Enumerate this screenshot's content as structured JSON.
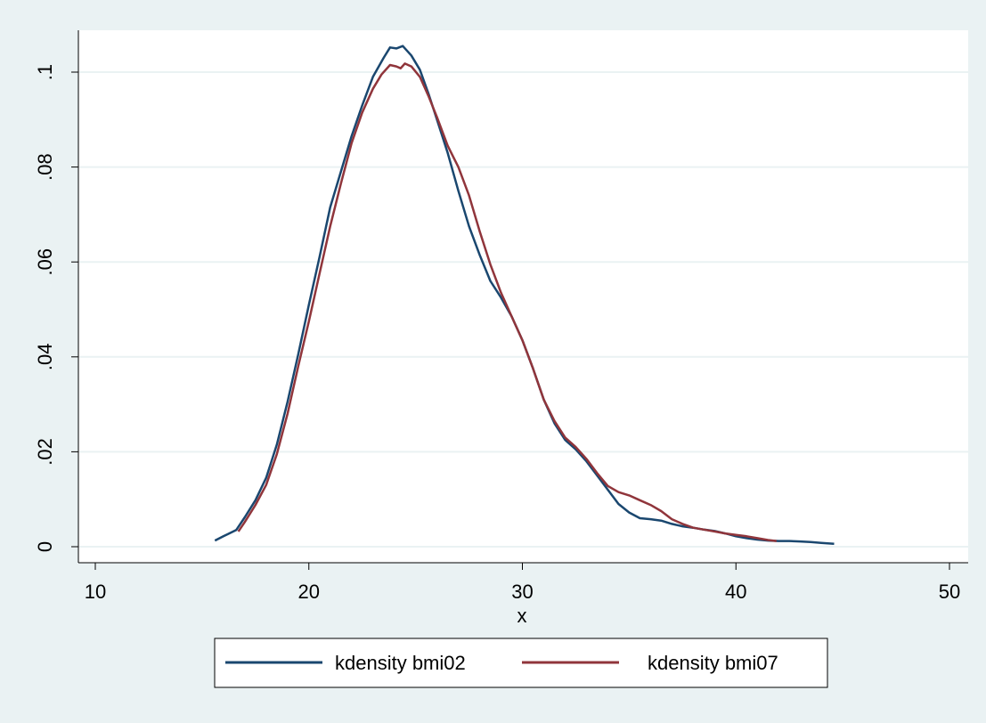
{
  "chart_data": {
    "type": "line",
    "title": "",
    "xlabel": "x",
    "ylabel": "",
    "xlim": [
      10,
      50
    ],
    "ylim": [
      0,
      0.1
    ],
    "x_ticks": [
      {
        "value": 10,
        "label": "10"
      },
      {
        "value": 20,
        "label": "20"
      },
      {
        "value": 30,
        "label": "30"
      },
      {
        "value": 40,
        "label": "40"
      },
      {
        "value": 50,
        "label": "50"
      }
    ],
    "y_ticks": [
      {
        "value": 0,
        "label": "0"
      },
      {
        "value": 0.02,
        "label": ".02"
      },
      {
        "value": 0.04,
        "label": ".04"
      },
      {
        "value": 0.06,
        "label": ".06"
      },
      {
        "value": 0.08,
        "label": ".08"
      },
      {
        "value": 0.1,
        "label": ".1"
      }
    ],
    "grid": "horizontal",
    "legend_position": "bottom",
    "series": [
      {
        "name": "kdensity bmi02",
        "color": "#1a476f",
        "points": [
          [
            15.6,
            0.0013
          ],
          [
            16.0,
            0.0022
          ],
          [
            16.6,
            0.0035
          ],
          [
            17.0,
            0.0062
          ],
          [
            17.5,
            0.0098
          ],
          [
            18.0,
            0.0145
          ],
          [
            18.5,
            0.0215
          ],
          [
            19.0,
            0.0305
          ],
          [
            19.5,
            0.0405
          ],
          [
            20.0,
            0.051
          ],
          [
            20.5,
            0.061
          ],
          [
            21.0,
            0.0715
          ],
          [
            21.5,
            0.079
          ],
          [
            22.0,
            0.0865
          ],
          [
            22.5,
            0.093
          ],
          [
            23.0,
            0.099
          ],
          [
            23.5,
            0.103
          ],
          [
            23.8,
            0.1052
          ],
          [
            24.1,
            0.105
          ],
          [
            24.4,
            0.1055
          ],
          [
            24.8,
            0.1035
          ],
          [
            25.2,
            0.1005
          ],
          [
            25.6,
            0.0955
          ],
          [
            26.0,
            0.09
          ],
          [
            26.5,
            0.083
          ],
          [
            27.0,
            0.075
          ],
          [
            27.5,
            0.0675
          ],
          [
            28.0,
            0.0615
          ],
          [
            28.5,
            0.056
          ],
          [
            29.0,
            0.0525
          ],
          [
            29.5,
            0.0485
          ],
          [
            30.0,
            0.0435
          ],
          [
            30.5,
            0.0375
          ],
          [
            31.0,
            0.031
          ],
          [
            31.5,
            0.026
          ],
          [
            32.0,
            0.0225
          ],
          [
            32.5,
            0.0205
          ],
          [
            33.0,
            0.018
          ],
          [
            33.5,
            0.015
          ],
          [
            34.0,
            0.012
          ],
          [
            34.5,
            0.009
          ],
          [
            35.0,
            0.0072
          ],
          [
            35.5,
            0.006
          ],
          [
            36.0,
            0.0058
          ],
          [
            36.5,
            0.0055
          ],
          [
            37.0,
            0.0048
          ],
          [
            37.5,
            0.0043
          ],
          [
            38.0,
            0.004
          ],
          [
            38.5,
            0.0036
          ],
          [
            39.0,
            0.0033
          ],
          [
            39.5,
            0.0028
          ],
          [
            40.0,
            0.0022
          ],
          [
            40.5,
            0.0018
          ],
          [
            41.0,
            0.0015
          ],
          [
            41.5,
            0.0013
          ],
          [
            42.0,
            0.0012
          ],
          [
            42.5,
            0.0012
          ],
          [
            43.0,
            0.0011
          ],
          [
            43.5,
            0.001
          ],
          [
            44.0,
            0.0008
          ],
          [
            44.6,
            0.0006
          ]
        ]
      },
      {
        "name": "kdensity bmi07",
        "color": "#90353b",
        "points": [
          [
            16.7,
            0.0032
          ],
          [
            17.0,
            0.0052
          ],
          [
            17.5,
            0.0088
          ],
          [
            18.0,
            0.013
          ],
          [
            18.5,
            0.0195
          ],
          [
            19.0,
            0.028
          ],
          [
            19.5,
            0.038
          ],
          [
            20.0,
            0.0475
          ],
          [
            20.5,
            0.0575
          ],
          [
            21.0,
            0.0675
          ],
          [
            21.5,
            0.0765
          ],
          [
            22.0,
            0.085
          ],
          [
            22.5,
            0.0915
          ],
          [
            23.0,
            0.0965
          ],
          [
            23.4,
            0.0995
          ],
          [
            23.8,
            0.1015
          ],
          [
            24.1,
            0.1012
          ],
          [
            24.3,
            0.1008
          ],
          [
            24.5,
            0.1018
          ],
          [
            24.8,
            0.1012
          ],
          [
            25.2,
            0.099
          ],
          [
            25.6,
            0.095
          ],
          [
            26.0,
            0.0905
          ],
          [
            26.5,
            0.0845
          ],
          [
            27.0,
            0.08
          ],
          [
            27.5,
            0.074
          ],
          [
            28.0,
            0.0665
          ],
          [
            28.5,
            0.0595
          ],
          [
            29.0,
            0.0535
          ],
          [
            29.5,
            0.0485
          ],
          [
            30.0,
            0.0435
          ],
          [
            30.5,
            0.0375
          ],
          [
            31.0,
            0.031
          ],
          [
            31.5,
            0.0265
          ],
          [
            32.0,
            0.023
          ],
          [
            32.5,
            0.021
          ],
          [
            33.0,
            0.0185
          ],
          [
            33.5,
            0.0155
          ],
          [
            34.0,
            0.0128
          ],
          [
            34.5,
            0.0115
          ],
          [
            35.0,
            0.0108
          ],
          [
            35.5,
            0.0098
          ],
          [
            36.0,
            0.0088
          ],
          [
            36.5,
            0.0075
          ],
          [
            37.0,
            0.0058
          ],
          [
            37.5,
            0.0048
          ],
          [
            38.0,
            0.004
          ],
          [
            38.5,
            0.0036
          ],
          [
            39.0,
            0.0032
          ],
          [
            39.5,
            0.0028
          ],
          [
            40.0,
            0.0025
          ],
          [
            40.5,
            0.0022
          ],
          [
            41.0,
            0.0018
          ],
          [
            41.5,
            0.0014
          ],
          [
            41.9,
            0.0012
          ]
        ]
      }
    ]
  }
}
